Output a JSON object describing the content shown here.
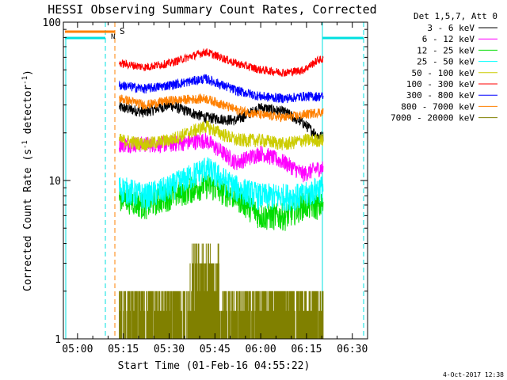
{
  "chart_data": {
    "type": "line",
    "title": "HESSI Observing Summary Count Rates, Corrected",
    "xlabel": "Start Time (01-Feb-16 04:55:22)",
    "ylabel_main": "Corrected Count Rate (s",
    "ylabel_sup1": "-1",
    "ylabel_mid": " detector",
    "ylabel_sup2": "-1",
    "ylabel_end": ")",
    "y_scale": "log",
    "ylim": [
      1,
      100
    ],
    "xlim": [
      "04:55:22",
      "06:35:00"
    ],
    "x_ticks": [
      "05:00",
      "05:15",
      "05:30",
      "05:45",
      "06:00",
      "06:15",
      "06:30"
    ],
    "y_ticks": [
      "1",
      "10",
      "100"
    ],
    "legend_header": "Det 1,5,7, Att 0",
    "legend_placement": "right, outside plot",
    "timestamp": "4-Oct-2017 12:38",
    "markers": [
      {
        "label": "S",
        "time": "05:11:30",
        "color": "#ff8000"
      },
      {
        "label": "N",
        "time": "05:10:30",
        "color": "#00e0e0"
      }
    ],
    "series": [
      {
        "name": "3 - 6 keV",
        "color": "#000000",
        "values": [
          29,
          27,
          30,
          25,
          24,
          29,
          27,
          23,
          19
        ]
      },
      {
        "name": "6 - 12 keV",
        "color": "#ff00ff",
        "values": [
          17,
          17,
          17,
          18,
          13,
          15,
          13,
          11,
          12
        ]
      },
      {
        "name": "12 - 25 keV",
        "color": "#00dd00",
        "values": [
          8,
          7,
          8,
          9.5,
          8,
          6,
          6,
          7,
          7
        ]
      },
      {
        "name": "25 - 50 keV",
        "color": "#00ffff",
        "values": [
          9,
          8,
          9,
          12,
          9,
          8,
          8,
          8,
          9
        ]
      },
      {
        "name": "50 - 100 keV",
        "color": "#cccc00",
        "values": [
          18,
          17,
          18,
          22,
          18,
          18,
          17,
          18,
          18
        ]
      },
      {
        "name": "100 - 300 keV",
        "color": "#ff0000",
        "values": [
          55,
          52,
          55,
          65,
          55,
          50,
          48,
          50,
          58
        ]
      },
      {
        "name": "300 - 800 keV",
        "color": "#0000ff",
        "values": [
          40,
          38,
          40,
          44,
          37,
          34,
          33,
          34,
          34
        ]
      },
      {
        "name": "800 - 7000 keV",
        "color": "#ff8000",
        "values": [
          33,
          30,
          32,
          33,
          28,
          26,
          25,
          26,
          27
        ]
      },
      {
        "name": "7000 - 20000 keV",
        "color": "#808000",
        "values": [
          1.5,
          1.5,
          1.5,
          2.5,
          1.5,
          1.5,
          1.5,
          1.5,
          1.5
        ]
      }
    ],
    "x": [
      "05:14",
      "05:22",
      "05:30",
      "05:42",
      "05:52",
      "06:00",
      "06:08",
      "06:14",
      "06:19"
    ]
  }
}
